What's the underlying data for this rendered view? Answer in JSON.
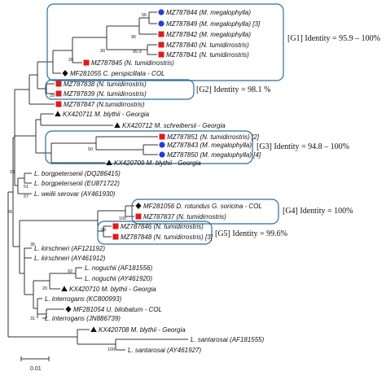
{
  "leaves": [
    {
      "key": "mz787844",
      "label": "MZ787844 (M. megalophylla)",
      "marker": "circle"
    },
    {
      "key": "mz787849",
      "label": "MZ787849 (M. megalophylla) [3]",
      "marker": "circle"
    },
    {
      "key": "mz787842",
      "label": "MZ787842 (M. megalophylla)",
      "marker": "square"
    },
    {
      "key": "mz787840",
      "label": "MZ787840 (N. tumidirrostris)",
      "marker": "square"
    },
    {
      "key": "mz787841",
      "label": "MZ787841 (N. tumidirrostris)",
      "marker": "square"
    },
    {
      "key": "mz787845",
      "label": "MZ787845 (N. tumidirrostris)",
      "marker": "square"
    },
    {
      "key": "mf281055",
      "label": "MF281055 C. perspicillata - COL",
      "marker": "diamond"
    },
    {
      "key": "mz787838",
      "label": "MZ787838 (N. tumidirrostris)",
      "marker": "square"
    },
    {
      "key": "mz787839",
      "label": "MZ787839 (N. tumidirrostris)",
      "marker": "square"
    },
    {
      "key": "mz787847",
      "label": "MZ787847 (N.tumidirrostris)",
      "marker": "square"
    },
    {
      "key": "kx420711",
      "label": "KX420711 M. blythii - Georgia",
      "marker": "triangle"
    },
    {
      "key": "kx420712",
      "label": "KX420712 M. schreibersii - Georgia",
      "marker": "triangle"
    },
    {
      "key": "mz787851",
      "label": "MZ787851 (N. tumidirrostris) [2]",
      "marker": "square"
    },
    {
      "key": "mz787843",
      "label": "MZ787843 (M. megalophylla)",
      "marker": "circle"
    },
    {
      "key": "mz787850",
      "label": "MZ787850 (M. megalophylla) [4]",
      "marker": "circle"
    },
    {
      "key": "kx420709",
      "label": "KX420709 M. blythii - Georgia",
      "marker": "triangle"
    },
    {
      "key": "lborg_dq",
      "label": "L. borgpetersenii (DQ286415)",
      "marker": "none"
    },
    {
      "key": "lborg_eu",
      "label": "L. borgpetersenii (EU871722)",
      "marker": "none"
    },
    {
      "key": "lweilii",
      "label": "L. weilii serovar (AY461930)",
      "marker": "none"
    },
    {
      "key": "mf281056",
      "label": "MF281056 D. rotundus G. soricina - COL",
      "marker": "diamond"
    },
    {
      "key": "mz787837",
      "label": "MZ787837 (N. tumidirrostris)",
      "marker": "square"
    },
    {
      "key": "mz787846",
      "label": "MZ787846 (N. tumidirrostris)",
      "marker": "square"
    },
    {
      "key": "mz787848",
      "label": "MZ787848 (N. tumidirrostris) [3]",
      "marker": "square"
    },
    {
      "key": "lkirsch_af",
      "label": "L. kirschneri (AF121192)",
      "marker": "none"
    },
    {
      "key": "lkirsch_ay",
      "label": "L. kirschneri (AY461912)",
      "marker": "none"
    },
    {
      "key": "lnog_af",
      "label": "L. noguchii (AF181556)",
      "marker": "none"
    },
    {
      "key": "lnog_ay",
      "label": "L. noguchii (AY461920)",
      "marker": "none"
    },
    {
      "key": "kx420710",
      "label": "KX420710 M. blythii - Georgia",
      "marker": "triangle"
    },
    {
      "key": "linterr_kc",
      "label": "L. interrogans (KC800993)",
      "marker": "none"
    },
    {
      "key": "mf281054",
      "label": "MF281054 U. bilobatum - COL",
      "marker": "diamond"
    },
    {
      "key": "linterr_jn",
      "label": "L. interrogans (JN886739)",
      "marker": "none"
    },
    {
      "key": "kx420708",
      "label": "KX420708 M. blythii - Georgia",
      "marker": "triangle"
    },
    {
      "key": "lsant_af",
      "label": "L. santarosai (AF181555)",
      "marker": "none"
    },
    {
      "key": "lsant_ay",
      "label": "L. santarosai (AY461927)",
      "marker": "none"
    }
  ],
  "bootstrap_values": [
    "56",
    "95",
    "95.9",
    "30",
    "20",
    "29",
    "50",
    "29",
    "51",
    "57",
    "26",
    "100",
    "99",
    "35",
    "92",
    "20",
    "31",
    "100"
  ],
  "groups": [
    {
      "key": "g1",
      "label": "[G1] Identity = 95.9 – 100%"
    },
    {
      "key": "g2",
      "label": "[G2] Identity = 98.1 %"
    },
    {
      "key": "g3",
      "label": "[G3] Identity = 94.8 – 100%"
    },
    {
      "key": "g4",
      "label": "[G4] Identity = 100%"
    },
    {
      "key": "g5",
      "label": "[G5] Identity = 99.6%"
    }
  ],
  "scale_bar": {
    "label": "0.01"
  },
  "colors": {
    "circle": "#1f3fd6",
    "square": "#e01b1b",
    "triangle": "#111111",
    "diamond": "#111111",
    "box": "#2c6e9e"
  }
}
